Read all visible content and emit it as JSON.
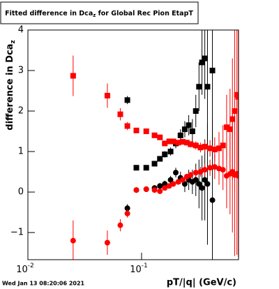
{
  "chart_data": {
    "type": "scatter",
    "title": {
      "text": "Fitted difference in Dca",
      "sub": "z",
      "rest": " for Global Rec Pion EtapT"
    },
    "y_label": {
      "text": "difference in Dca",
      "sub": "z"
    },
    "x_label": "pT/|q| (GeV/c)",
    "timestamp": "Wed Jan 13 08:20:06 2021",
    "xscale": "log",
    "xlim": [
      0.01,
      0.713
    ],
    "ylim": [
      -1.67,
      4
    ],
    "xticks": [
      {
        "value": 0.01,
        "label": "10",
        "exponent": "-2"
      },
      {
        "value": 0.1,
        "label": "10",
        "exponent": "-1"
      }
    ],
    "yticks": [
      {
        "value": -1,
        "label": "−1"
      },
      0,
      1,
      2,
      3,
      4
    ],
    "series": [
      {
        "marker": "square",
        "color": "#000000",
        "x": [
          0.075,
          0.09,
          0.11,
          0.13,
          0.145,
          0.16,
          0.18,
          0.2,
          0.22,
          0.24,
          0.26,
          0.28,
          0.3,
          0.32,
          0.34,
          0.36,
          0.38,
          0.42
        ],
        "values": [
          2.27,
          0.6,
          0.6,
          0.7,
          0.82,
          0.93,
          1.0,
          1.2,
          1.4,
          1.55,
          1.65,
          1.5,
          2.0,
          2.6,
          3.2,
          3.3,
          2.6,
          3.0
        ],
        "errors": [
          0.1,
          0.05,
          0.05,
          0.06,
          0.07,
          0.08,
          0.1,
          0.12,
          0.15,
          0.2,
          0.25,
          0.3,
          0.4,
          0.6,
          0.8,
          1.0,
          1.5,
          2
        ]
      },
      {
        "marker": "circle",
        "color": "#000000",
        "x": [
          0.075,
          0.09,
          0.11,
          0.13,
          0.145,
          0.16,
          0.18,
          0.2,
          0.22,
          0.24,
          0.26,
          0.28,
          0.3,
          0.32,
          0.34,
          0.36,
          0.38,
          0.42
        ],
        "values": [
          -0.4,
          0.05,
          0.07,
          0.1,
          0.15,
          0.2,
          0.3,
          0.48,
          0.35,
          0.2,
          0.3,
          0.25,
          0.3,
          0.2,
          0.1,
          0.3,
          0.2,
          -0.2
        ],
        "errors": [
          0.1,
          0.05,
          0.05,
          0.06,
          0.07,
          0.08,
          0.1,
          0.12,
          0.15,
          0.2,
          0.25,
          0.3,
          0.4,
          0.6,
          0.8,
          1.0,
          1.5,
          2
        ]
      },
      {
        "marker": "square",
        "color": "#ff0000",
        "x": [
          0.025,
          0.05,
          0.065,
          0.075,
          0.09,
          0.11,
          0.13,
          0.145,
          0.16,
          0.175,
          0.19,
          0.21,
          0.23,
          0.25,
          0.27,
          0.3,
          0.33,
          0.36,
          0.4,
          0.44,
          0.48,
          0.52,
          0.56,
          0.6,
          0.63,
          0.66,
          0.69,
          0.71
        ],
        "values": [
          2.87,
          2.38,
          1.92,
          1.63,
          1.52,
          1.5,
          1.4,
          1.35,
          1.2,
          1.25,
          1.25,
          1.22,
          1.24,
          1.22,
          1.18,
          1.15,
          1.1,
          1.12,
          1.08,
          1.05,
          1.08,
          1.15,
          1.6,
          1.55,
          1.8,
          2.0,
          2.4,
          2.35
        ],
        "errors": [
          0.5,
          0.3,
          0.15,
          0.1,
          0.05,
          0.05,
          0.05,
          0.05,
          0.05,
          0.05,
          0.05,
          0.05,
          0.06,
          0.06,
          0.08,
          0.1,
          0.12,
          0.15,
          0.2,
          0.3,
          0.4,
          0.5,
          0.8,
          1.0,
          1.5,
          2,
          2,
          2
        ]
      },
      {
        "marker": "circle",
        "color": "#ff0000",
        "x": [
          0.025,
          0.05,
          0.065,
          0.075,
          0.09,
          0.11,
          0.13,
          0.145,
          0.16,
          0.175,
          0.19,
          0.21,
          0.23,
          0.25,
          0.27,
          0.3,
          0.33,
          0.36,
          0.4,
          0.44,
          0.48,
          0.52,
          0.56,
          0.6,
          0.63,
          0.66,
          0.69,
          0.71
        ],
        "values": [
          -1.2,
          -1.25,
          -0.82,
          -0.53,
          0.05,
          0.07,
          0.05,
          0.02,
          0.1,
          0.15,
          0.2,
          0.25,
          0.3,
          0.38,
          0.42,
          0.48,
          0.5,
          0.55,
          0.6,
          0.62,
          0.58,
          0.55,
          0.4,
          0.45,
          0.5,
          0.42,
          0.45,
          0.4
        ],
        "errors": [
          0.5,
          0.3,
          0.15,
          0.1,
          0.05,
          0.05,
          0.05,
          0.05,
          0.05,
          0.05,
          0.05,
          0.05,
          0.06,
          0.06,
          0.08,
          0.1,
          0.12,
          0.15,
          0.2,
          0.3,
          0.4,
          0.5,
          0.8,
          1.0,
          1.5,
          2,
          2,
          2
        ]
      }
    ]
  }
}
